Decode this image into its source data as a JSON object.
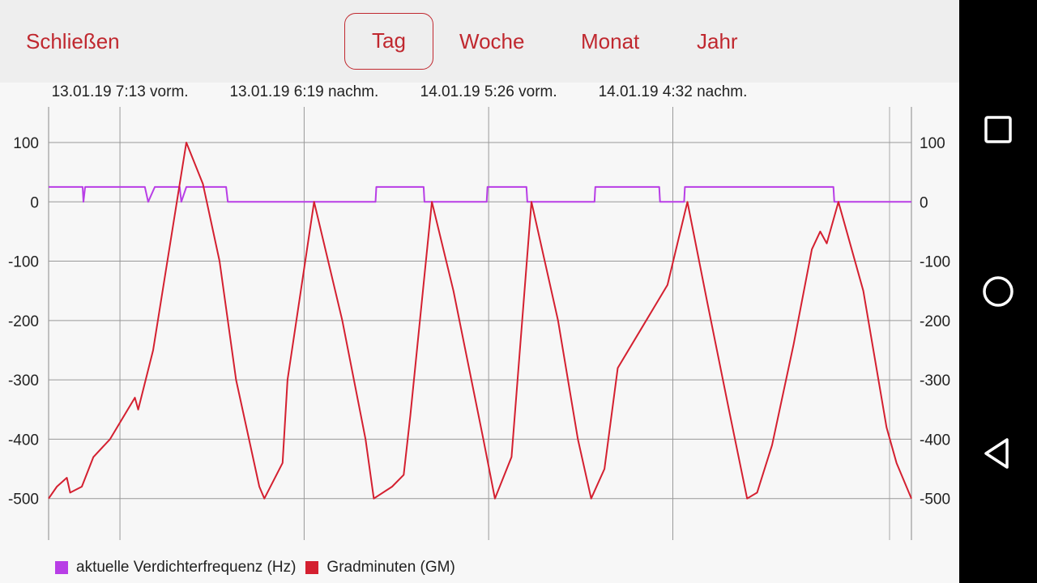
{
  "toolbar": {
    "close_label": "Schließen",
    "tabs": [
      {
        "label": "Tag",
        "selected": true
      },
      {
        "label": "Woche",
        "selected": false
      },
      {
        "label": "Monat",
        "selected": false
      },
      {
        "label": "Jahr",
        "selected": false
      }
    ],
    "accent_color": "#c0282f"
  },
  "android_nav": {
    "icons": [
      "square-overview-icon",
      "circle-home-icon",
      "triangle-back-icon"
    ]
  },
  "chart_data": {
    "type": "line",
    "x_range_hours": [
      -4.3,
      47.7
    ],
    "time_labels": [
      {
        "t": 0,
        "label": "13.01.19 7:13 vorm."
      },
      {
        "t": 11.1,
        "label": "13.01.19 6:19 nachm."
      },
      {
        "t": 22.22,
        "label": "14.01.19 5:26 vorm."
      },
      {
        "t": 33.32,
        "label": "14.01.19 4:32 nachm."
      }
    ],
    "y_left_ticks": [
      100,
      0,
      -100,
      -200,
      -300,
      -400,
      -500
    ],
    "y_right_ticks": [
      100,
      0,
      -100,
      -200,
      -300,
      -400,
      -500
    ],
    "ylim": [
      -570,
      160
    ],
    "grid": true,
    "legend_position": "bottom-left",
    "series": [
      {
        "name": "aktuelle Verdichterfrequenz (Hz)",
        "color": "#b83ee6",
        "points": [
          [
            -4.3,
            25
          ],
          [
            -2.25,
            25
          ],
          [
            -2.2,
            0
          ],
          [
            -2.1,
            25
          ],
          [
            1.5,
            25
          ],
          [
            1.7,
            0
          ],
          [
            2.1,
            25
          ],
          [
            3.6,
            25
          ],
          [
            3.7,
            0
          ],
          [
            4.0,
            25
          ],
          [
            5.0,
            25
          ],
          [
            6.4,
            25
          ],
          [
            6.5,
            0
          ],
          [
            15.4,
            0
          ],
          [
            15.45,
            25
          ],
          [
            18.3,
            25
          ],
          [
            18.35,
            0
          ],
          [
            22.1,
            0
          ],
          [
            22.15,
            25
          ],
          [
            24.5,
            25
          ],
          [
            24.55,
            0
          ],
          [
            28.6,
            0
          ],
          [
            28.65,
            25
          ],
          [
            32.5,
            25
          ],
          [
            32.55,
            0
          ],
          [
            34.0,
            0
          ],
          [
            34.05,
            25
          ],
          [
            43.0,
            25
          ],
          [
            43.05,
            0
          ],
          [
            47.7,
            0
          ]
        ]
      },
      {
        "name": "Gradminuten (GM)",
        "color": "#d42030",
        "points": [
          [
            -4.3,
            -500
          ],
          [
            -3.8,
            -480
          ],
          [
            -3.2,
            -465
          ],
          [
            -3.0,
            -490
          ],
          [
            -2.3,
            -480
          ],
          [
            -1.6,
            -430
          ],
          [
            -0.6,
            -400
          ],
          [
            0.9,
            -330
          ],
          [
            1.1,
            -350
          ],
          [
            2.0,
            -250
          ],
          [
            3.2,
            -40
          ],
          [
            4.0,
            100
          ],
          [
            5.0,
            30
          ],
          [
            6.0,
            -100
          ],
          [
            7.0,
            -300
          ],
          [
            8.4,
            -480
          ],
          [
            8.7,
            -500
          ],
          [
            9.8,
            -440
          ],
          [
            10.1,
            -300
          ],
          [
            11.7,
            0
          ],
          [
            13.4,
            -200
          ],
          [
            14.8,
            -400
          ],
          [
            15.3,
            -500
          ],
          [
            16.4,
            -480
          ],
          [
            17.1,
            -460
          ],
          [
            17.5,
            -360
          ],
          [
            18.8,
            0
          ],
          [
            20.1,
            -150
          ],
          [
            21.9,
            -400
          ],
          [
            22.6,
            -500
          ],
          [
            23.6,
            -430
          ],
          [
            24.8,
            0
          ],
          [
            26.4,
            -200
          ],
          [
            27.6,
            -400
          ],
          [
            28.4,
            -500
          ],
          [
            29.2,
            -450
          ],
          [
            30.0,
            -280
          ],
          [
            31.5,
            -210
          ],
          [
            33.0,
            -140
          ],
          [
            34.2,
            0
          ],
          [
            35.4,
            -170
          ],
          [
            36.7,
            -350
          ],
          [
            37.8,
            -500
          ],
          [
            38.4,
            -490
          ],
          [
            39.3,
            -410
          ],
          [
            40.6,
            -240
          ],
          [
            41.7,
            -80
          ],
          [
            42.2,
            -50
          ],
          [
            42.6,
            -70
          ],
          [
            43.3,
            0
          ],
          [
            44.8,
            -150
          ],
          [
            46.2,
            -380
          ],
          [
            46.8,
            -440
          ],
          [
            47.7,
            -500
          ]
        ]
      }
    ]
  },
  "legend": {
    "items": [
      {
        "label": "aktuelle Verdichterfrequenz (Hz)",
        "color": "#b83ee6"
      },
      {
        "label": "Gradminuten (GM)",
        "color": "#d42030"
      }
    ]
  }
}
